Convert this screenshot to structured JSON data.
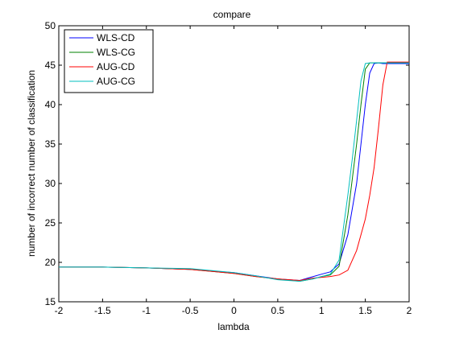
{
  "chart_data": {
    "type": "line",
    "title": "compare",
    "xlabel": "lambda",
    "ylabel": "number of incorrect number of classification",
    "xlim": [
      -2,
      2
    ],
    "ylim": [
      15,
      50
    ],
    "x_ticks": [
      -2,
      -1.5,
      -1,
      -0.5,
      0,
      0.5,
      1,
      1.5,
      2
    ],
    "y_ticks": [
      15,
      20,
      25,
      30,
      35,
      40,
      45,
      50
    ],
    "x_tick_labels": [
      "-2",
      "-1.5",
      "-1",
      "-0.5",
      "0",
      "0.5",
      "1",
      "1.5",
      "2"
    ],
    "y_tick_labels": [
      "15",
      "20",
      "25",
      "30",
      "35",
      "40",
      "45",
      "50"
    ],
    "grid": false,
    "legend_position": "top-left",
    "series": [
      {
        "name": "WLS-CD",
        "color": "#0000ff",
        "x": [
          -2,
          -1.5,
          -1,
          -0.5,
          0,
          0.25,
          0.5,
          0.75,
          1.0,
          1.1,
          1.2,
          1.3,
          1.4,
          1.45,
          1.5,
          1.55,
          1.6,
          1.65,
          1.7,
          2
        ],
        "y": [
          19.4,
          19.4,
          19.3,
          19.1,
          18.7,
          18.3,
          17.9,
          17.7,
          18.5,
          18.8,
          19.8,
          23.5,
          30.0,
          35.0,
          40.0,
          44.0,
          45.2,
          45.3,
          45.2,
          45.2
        ]
      },
      {
        "name": "WLS-CG",
        "color": "#008000",
        "x": [
          -2,
          -1.5,
          -1,
          -0.5,
          0,
          0.25,
          0.5,
          0.75,
          0.9,
          1.0,
          1.1,
          1.2,
          1.3,
          1.4,
          1.45,
          1.5,
          1.55,
          1.6,
          2
        ],
        "y": [
          19.4,
          19.4,
          19.3,
          19.1,
          18.6,
          18.2,
          17.9,
          17.6,
          17.9,
          18.2,
          18.4,
          19.5,
          26.0,
          35.0,
          40.0,
          44.5,
          45.3,
          45.3,
          45.3
        ]
      },
      {
        "name": "AUG-CD",
        "color": "#ff0000",
        "x": [
          -2,
          -1.5,
          -1,
          -0.5,
          0,
          0.25,
          0.5,
          0.75,
          0.9,
          1.0,
          1.1,
          1.2,
          1.3,
          1.4,
          1.5,
          1.55,
          1.6,
          1.65,
          1.7,
          1.75,
          2
        ],
        "y": [
          19.4,
          19.4,
          19.3,
          19.1,
          18.6,
          18.2,
          17.9,
          17.7,
          18.0,
          18.1,
          18.2,
          18.4,
          19.0,
          21.5,
          25.5,
          28.5,
          32.0,
          37.0,
          42.5,
          45.4,
          45.4
        ]
      },
      {
        "name": "AUG-CG",
        "color": "#00bfbf",
        "x": [
          -2,
          -1.5,
          -1,
          -0.5,
          0,
          0.25,
          0.5,
          0.75,
          0.9,
          1.0,
          1.1,
          1.2,
          1.3,
          1.35,
          1.4,
          1.45,
          1.5,
          1.55,
          2
        ],
        "y": [
          19.4,
          19.4,
          19.3,
          19.2,
          18.7,
          18.3,
          17.8,
          17.6,
          17.9,
          18.2,
          18.5,
          20.3,
          28.5,
          33.0,
          38.0,
          43.0,
          45.2,
          45.3,
          45.3
        ]
      }
    ]
  }
}
